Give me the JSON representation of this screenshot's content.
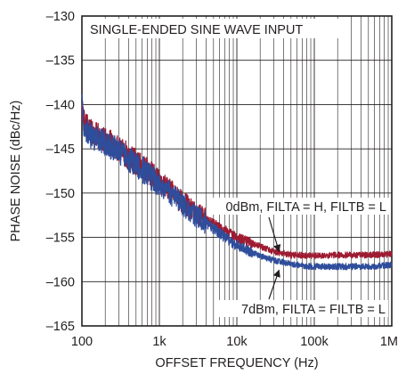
{
  "chart_data": {
    "type": "line",
    "title": "SINGLE-ENDED SINE WAVE INPUT",
    "xlabel": "OFFSET FREQUENCY (Hz)",
    "ylabel": "PHASE NOISE (dBc/Hz)",
    "xscale": "log",
    "xlim": [
      100,
      1000000
    ],
    "ylim": [
      -165,
      -130
    ],
    "grid": true,
    "xticks": [
      100,
      1000,
      10000,
      100000,
      1000000
    ],
    "xtick_labels": [
      "100",
      "1k",
      "10k",
      "100k",
      "1M"
    ],
    "yticks": [
      -165,
      -160,
      -155,
      -150,
      -145,
      -140,
      -135,
      -130
    ],
    "ytick_labels": [
      "–165",
      "–160",
      "–155",
      "–150",
      "–145",
      "–140",
      "–135",
      "–130"
    ],
    "series": [
      {
        "color": "#9e1b32",
        "x": [
          100,
          105,
          115,
          130,
          150,
          200,
          300,
          500,
          700,
          1000,
          1500,
          2000,
          3000,
          5000,
          7000,
          10000,
          15000,
          20000,
          30000,
          50000,
          70000,
          100000,
          200000,
          500000,
          1000000
        ],
        "y": [
          -140,
          -141.5,
          -142.5,
          -143,
          -143.5,
          -144,
          -145,
          -146.5,
          -147.5,
          -148.8,
          -150,
          -151,
          -152.2,
          -153.5,
          -154.2,
          -155,
          -155.6,
          -156,
          -156.6,
          -157,
          -157,
          -157.1,
          -157,
          -157,
          -156.9
        ]
      },
      {
        "color": "#2e4d9b",
        "x": [
          100,
          105,
          115,
          130,
          150,
          200,
          300,
          500,
          700,
          1000,
          1500,
          2000,
          3000,
          5000,
          7000,
          10000,
          15000,
          20000,
          30000,
          50000,
          70000,
          100000,
          200000,
          500000,
          1000000
        ],
        "y": [
          -140,
          -142,
          -143,
          -143.5,
          -143.8,
          -144.3,
          -145.3,
          -146.8,
          -147.8,
          -149,
          -150.3,
          -151.3,
          -152.6,
          -154,
          -155,
          -155.9,
          -156.6,
          -157.1,
          -157.6,
          -158,
          -158.2,
          -158.3,
          -158.3,
          -158.3,
          -158.1
        ]
      }
    ],
    "annotations": [
      {
        "text": "0dBm, FILTA = H, FILTB = L",
        "x": 35000,
        "y": -156.9
      },
      {
        "text": "7dBm, FILTA = FILTB = L",
        "x": 35000,
        "y": -157.9
      }
    ]
  }
}
